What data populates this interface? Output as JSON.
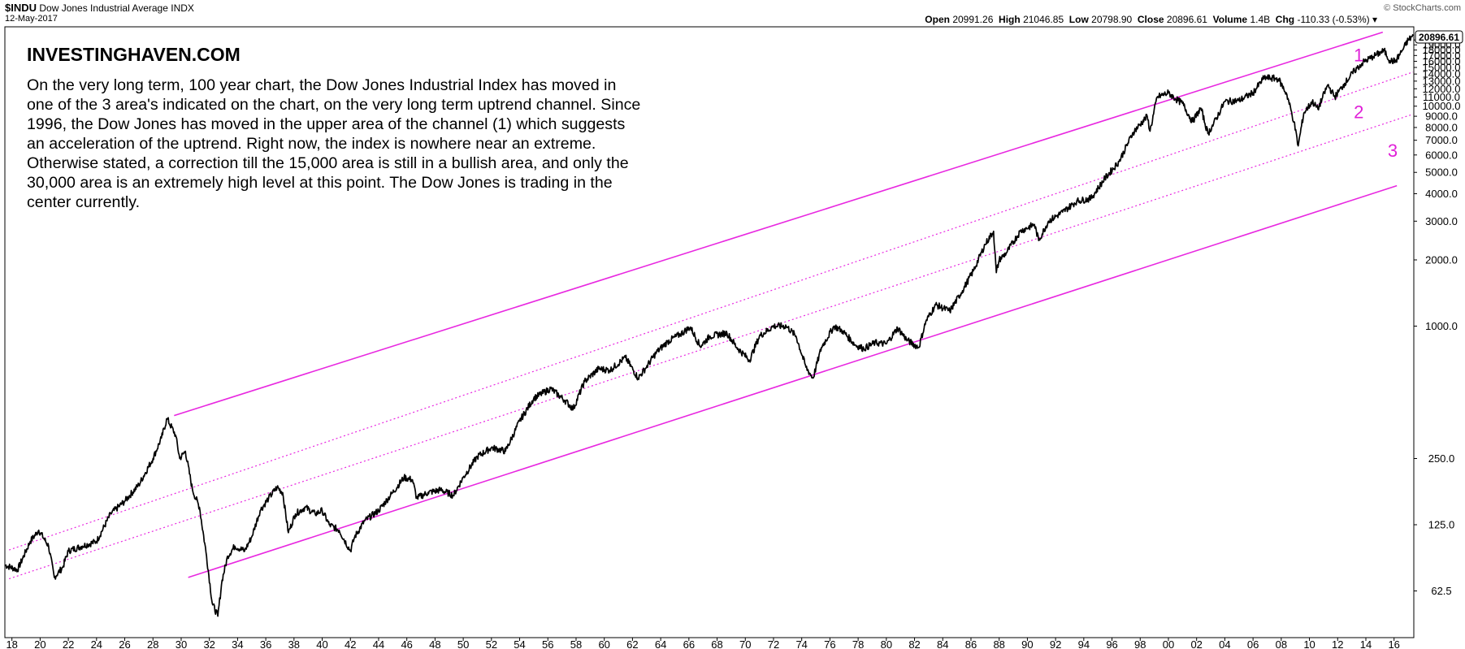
{
  "header": {
    "symbol": "$INDU",
    "name": "Dow Jones Industrial Average",
    "exchange": "INDX",
    "date": "12-May-2017",
    "open_label": "Open",
    "open": "20991.26",
    "high_label": "High",
    "high": "21046.85",
    "low_label": "Low",
    "low": "20798.90",
    "close_label": "Close",
    "close": "20896.61",
    "volume_label": "Volume",
    "volume": "1.4B",
    "chg_label": "Chg",
    "chg": "-110.33 (-0.53%)",
    "dropdown_icon": "caret-down-icon",
    "credit": "© StockCharts.com",
    "last_price": "20896.61"
  },
  "annotation": {
    "brand": "INVESTINGHAVEN.COM",
    "text": "On the very long term, 100 year chart, the Dow Jones Industrial Index has moved in one of the 3 area's indicated on the chart, on the very long term uptrend channel. Since 1996, the Dow Jones has moved in the upper area of the channel (1) which suggests an acceleration of the uptrend. Right now, the index is nowhere near an extreme. Otherwise stated, a correction till the 15,000 area is still in a bullish area, and only the 30,000 area is an extremely high level at this point. The Dow Jones is trading in the center currently."
  },
  "colors": {
    "channel": "#e828e0",
    "price": "#000000",
    "background": "#ffffff"
  },
  "chart_data": {
    "type": "line",
    "title": "$INDU Dow Jones Industrial Average INDX",
    "yscale": "log",
    "ylim": [
      40,
      22000
    ],
    "xlim": [
      1917.5,
      2017.4
    ],
    "y_ticks": [
      {
        "label": "62.5",
        "value": 62.5
      },
      {
        "label": "125.0",
        "value": 125
      },
      {
        "label": "250.0",
        "value": 250
      },
      {
        "label": "1000.0",
        "value": 1000
      },
      {
        "label": "2000.0",
        "value": 2000
      },
      {
        "label": "3000.0",
        "value": 3000
      },
      {
        "label": "4000.0",
        "value": 4000
      },
      {
        "label": "5000.0",
        "value": 5000
      },
      {
        "label": "6000.0",
        "value": 6000
      },
      {
        "label": "7000.0",
        "value": 7000
      },
      {
        "label": "8000.0",
        "value": 8000
      },
      {
        "label": "9000.0",
        "value": 9000
      },
      {
        "label": "10000.0",
        "value": 10000
      },
      {
        "label": "11000.0",
        "value": 11000
      },
      {
        "label": "12000.0",
        "value": 12000
      },
      {
        "label": "13000.0",
        "value": 13000
      },
      {
        "label": "14000.0",
        "value": 14000
      },
      {
        "label": "15000.0",
        "value": 15000
      },
      {
        "label": "16000.0",
        "value": 16000
      },
      {
        "label": "17000.0",
        "value": 17000
      },
      {
        "label": "18000.0",
        "value": 18000
      },
      {
        "label": "19000.0",
        "value": 19000
      },
      {
        "label": "20000.0",
        "value": 20000
      }
    ],
    "x_ticks": [
      {
        "label": "18",
        "value": 1918
      },
      {
        "label": "20",
        "value": 1920
      },
      {
        "label": "22",
        "value": 1922
      },
      {
        "label": "24",
        "value": 1924
      },
      {
        "label": "26",
        "value": 1926
      },
      {
        "label": "28",
        "value": 1928
      },
      {
        "label": "30",
        "value": 1930
      },
      {
        "label": "32",
        "value": 1932
      },
      {
        "label": "34",
        "value": 1934
      },
      {
        "label": "36",
        "value": 1936
      },
      {
        "label": "38",
        "value": 1938
      },
      {
        "label": "40",
        "value": 1940
      },
      {
        "label": "42",
        "value": 1942
      },
      {
        "label": "44",
        "value": 1944
      },
      {
        "label": "46",
        "value": 1946
      },
      {
        "label": "48",
        "value": 1948
      },
      {
        "label": "50",
        "value": 1950
      },
      {
        "label": "52",
        "value": 1952
      },
      {
        "label": "54",
        "value": 1954
      },
      {
        "label": "56",
        "value": 1956
      },
      {
        "label": "58",
        "value": 1958
      },
      {
        "label": "60",
        "value": 1960
      },
      {
        "label": "62",
        "value": 1962
      },
      {
        "label": "64",
        "value": 1964
      },
      {
        "label": "66",
        "value": 1966
      },
      {
        "label": "68",
        "value": 1968
      },
      {
        "label": "70",
        "value": 1970
      },
      {
        "label": "72",
        "value": 1972
      },
      {
        "label": "74",
        "value": 1974
      },
      {
        "label": "76",
        "value": 1976
      },
      {
        "label": "78",
        "value": 1978
      },
      {
        "label": "80",
        "value": 1980
      },
      {
        "label": "82",
        "value": 1982
      },
      {
        "label": "84",
        "value": 1984
      },
      {
        "label": "86",
        "value": 1986
      },
      {
        "label": "88",
        "value": 1988
      },
      {
        "label": "90",
        "value": 1990
      },
      {
        "label": "92",
        "value": 1992
      },
      {
        "label": "94",
        "value": 1994
      },
      {
        "label": "96",
        "value": 1996
      },
      {
        "label": "98",
        "value": 1998
      },
      {
        "label": "00",
        "value": 2000
      },
      {
        "label": "02",
        "value": 2002
      },
      {
        "label": "04",
        "value": 2004
      },
      {
        "label": "06",
        "value": 2006
      },
      {
        "label": "08",
        "value": 2008
      },
      {
        "label": "10",
        "value": 2010
      },
      {
        "label": "12",
        "value": 2012
      },
      {
        "label": "14",
        "value": 2014
      },
      {
        "label": "16",
        "value": 2016
      }
    ],
    "series": [
      {
        "name": "Dow Jones Industrial Average",
        "style": "solid",
        "x": [
          1917.5,
          1918.4,
          1919.3,
          1919.9,
          1920.6,
          1921.0,
          1921.6,
          1922.0,
          1923.0,
          1924.0,
          1925.0,
          1926.0,
          1927.0,
          1928.0,
          1928.6,
          1929.0,
          1929.6,
          1929.9,
          1930.3,
          1930.8,
          1931.3,
          1931.8,
          1932.2,
          1932.6,
          1932.9,
          1933.3,
          1933.8,
          1934.5,
          1935.0,
          1935.6,
          1936.2,
          1936.8,
          1937.2,
          1937.6,
          1938.1,
          1938.8,
          1939.5,
          1940.0,
          1940.5,
          1941.2,
          1942.0,
          1942.3,
          1943.0,
          1944.0,
          1945.0,
          1945.8,
          1946.4,
          1946.7,
          1947.5,
          1948.4,
          1949.3,
          1950.0,
          1951.0,
          1952.0,
          1953.0,
          1954.0,
          1955.0,
          1956.2,
          1957.2,
          1957.8,
          1958.6,
          1959.6,
          1960.4,
          1961.5,
          1962.4,
          1962.9,
          1963.7,
          1964.5,
          1965.4,
          1966.1,
          1966.8,
          1967.5,
          1968.7,
          1969.4,
          1970.3,
          1971.0,
          1972.0,
          1972.9,
          1973.6,
          1974.3,
          1974.8,
          1975.4,
          1976.3,
          1976.9,
          1977.8,
          1978.4,
          1979.2,
          1980.0,
          1980.8,
          1981.5,
          1982.3,
          1982.8,
          1983.5,
          1984.5,
          1985.4,
          1986.2,
          1987.0,
          1987.6,
          1987.8,
          1988.0,
          1988.5,
          1989.5,
          1990.5,
          1990.8,
          1991.5,
          1992.5,
          1993.5,
          1994.5,
          1995.5,
          1996.5,
          1997.5,
          1998.5,
          1998.7,
          1999.2,
          2000.0,
          2000.5,
          2001.0,
          2001.7,
          2002.3,
          2002.8,
          2003.2,
          2004.0,
          2005.0,
          2006.0,
          2006.8,
          2007.8,
          2008.4,
          2008.9,
          2009.2,
          2009.6,
          2010.2,
          2010.6,
          2011.3,
          2011.8,
          2012.5,
          2013.2,
          2013.8,
          2014.5,
          2015.3,
          2015.7,
          2016.1,
          2016.6,
          2017.0,
          2017.36
        ],
        "y": [
          82,
          78,
          105,
          118,
          100,
          72,
          80,
          95,
          100,
          105,
          140,
          160,
          190,
          250,
          310,
          380,
          320,
          250,
          270,
          180,
          150,
          90,
          55,
          48,
          70,
          90,
          100,
          95,
          110,
          145,
          165,
          185,
          175,
          115,
          140,
          150,
          140,
          145,
          125,
          118,
          95,
          110,
          130,
          145,
          175,
          205,
          200,
          165,
          175,
          180,
          170,
          205,
          255,
          280,
          270,
          370,
          470,
          520,
          460,
          420,
          560,
          640,
          630,
          720,
          580,
          640,
          760,
          850,
          920,
          990,
          810,
          900,
          930,
          800,
          700,
          900,
          1000,
          1000,
          900,
          650,
          580,
          800,
          1000,
          950,
          820,
          790,
          840,
          830,
          980,
          860,
          800,
          1050,
          1250,
          1170,
          1450,
          1800,
          2350,
          2700,
          1750,
          2000,
          2150,
          2700,
          2900,
          2450,
          3000,
          3300,
          3700,
          3800,
          4700,
          5600,
          7600,
          9000,
          7700,
          11000,
          11500,
          10800,
          10300,
          8500,
          9800,
          7500,
          8300,
          10500,
          10600,
          11500,
          13500,
          13300,
          11300,
          8500,
          6600,
          9300,
          10500,
          9700,
          12500,
          11000,
          12700,
          14500,
          15800,
          16800,
          17900,
          16100,
          16000,
          18000,
          20000,
          20896.61
        ]
      },
      {
        "name": "Channel upper line (solid)",
        "style": "channel-solid",
        "x": [
          1929.5,
          2015.2
        ],
        "y": [
          392,
          21700
        ]
      },
      {
        "name": "Channel line (dotted, upper)",
        "style": "channel-dotted",
        "x": [
          1917.8,
          2017.35
        ],
        "y": [
          96,
          14300
        ]
      },
      {
        "name": "Channel line (dotted, lower)",
        "style": "channel-dotted",
        "x": [
          1917.8,
          2017.35
        ],
        "y": [
          71,
          9200
        ]
      },
      {
        "name": "Channel lower line (solid)",
        "style": "channel-solid",
        "x": [
          1930.5,
          2016.2
        ],
        "y": [
          72,
          4350
        ]
      }
    ],
    "annotations": [
      {
        "label": "1",
        "x": 2013.5,
        "y": 16000
      },
      {
        "label": "2",
        "x": 2013.5,
        "y": 8800
      },
      {
        "label": "3",
        "x": 2015.9,
        "y": 5900
      }
    ]
  }
}
